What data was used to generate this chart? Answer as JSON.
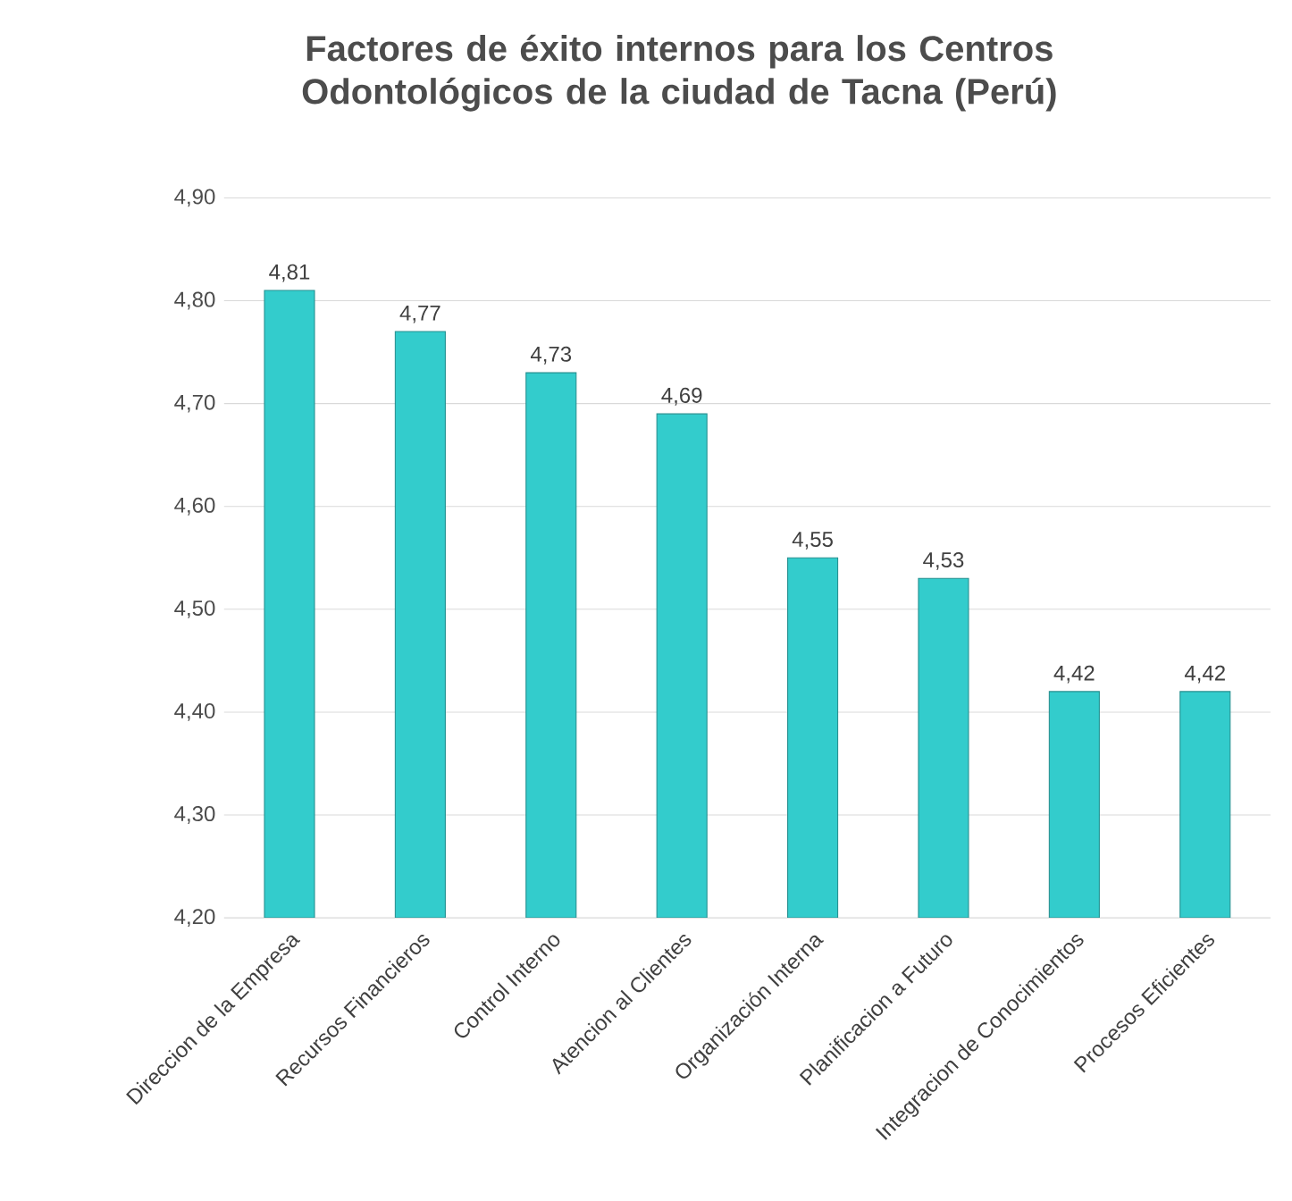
{
  "chart_data": {
    "type": "bar",
    "title": "Factores de éxito internos para los Centros Odontológicos de la ciudad de Tacna (Perú)",
    "categories": [
      "Direccion de la Empresa",
      "Recursos Financieros",
      "Control Interno",
      "Atencion al Clientes",
      "Organización Interna",
      "Planificacion a Futuro",
      "Integracion de Conocimientos",
      "Procesos Eficientes"
    ],
    "values": [
      4.81,
      4.77,
      4.73,
      4.69,
      4.55,
      4.53,
      4.42,
      4.42
    ],
    "value_labels": [
      "4,81",
      "4,77",
      "4,73",
      "4,69",
      "4,55",
      "4,53",
      "4,42",
      "4,42"
    ],
    "color": "#33cccc",
    "ylim": [
      4.2,
      4.9
    ],
    "yticks": [
      {
        "value": 4.2,
        "label": "4,20"
      },
      {
        "value": 4.3,
        "label": "4,30"
      },
      {
        "value": 4.4,
        "label": "4,40"
      },
      {
        "value": 4.5,
        "label": "4,50"
      },
      {
        "value": 4.6,
        "label": "4,60"
      },
      {
        "value": 4.7,
        "label": "4,70"
      },
      {
        "value": 4.8,
        "label": "4,80"
      },
      {
        "value": 4.9,
        "label": "4,90"
      }
    ],
    "grid": "y"
  }
}
